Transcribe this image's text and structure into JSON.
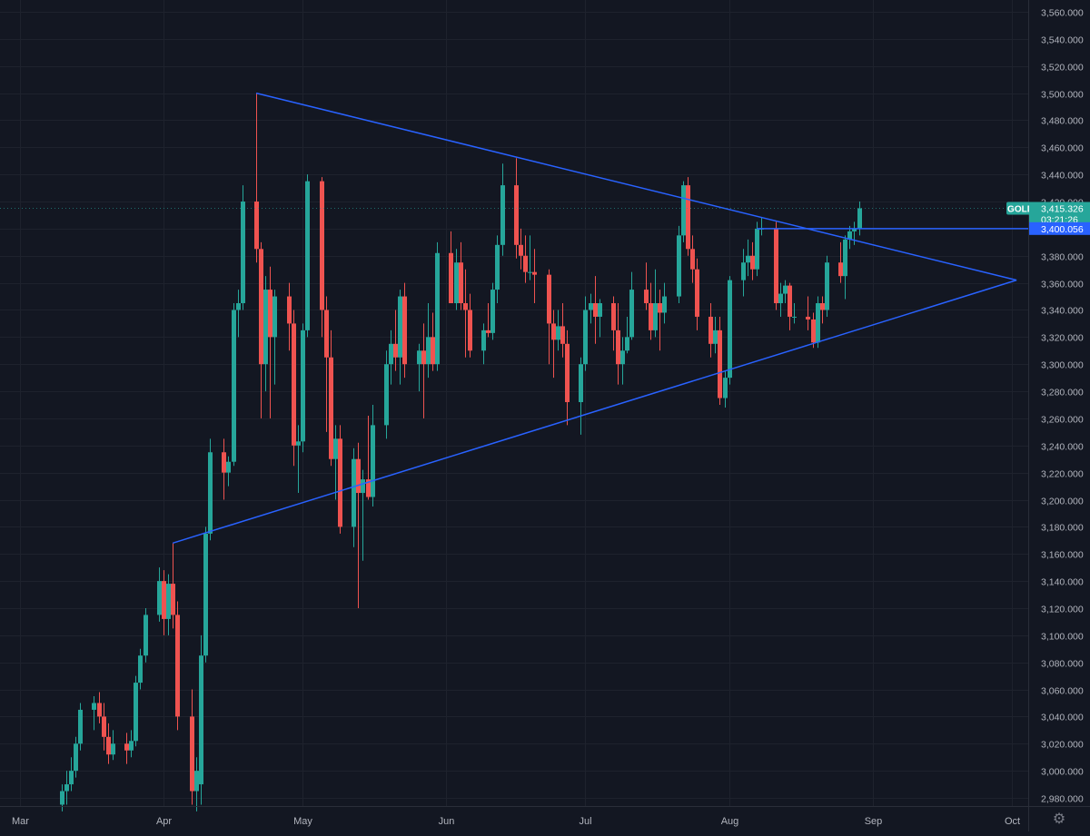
{
  "chart_data": {
    "type": "candlestick",
    "symbol": "GOLD",
    "last_price": "3,415.326",
    "countdown": "03:21:26",
    "level_price": "3,400.056",
    "ylim": [
      2970,
      3568
    ],
    "y_ticks": [
      2980,
      3000,
      3020,
      3040,
      3060,
      3080,
      3100,
      3120,
      3140,
      3160,
      3180,
      3200,
      3220,
      3240,
      3260,
      3280,
      3300,
      3320,
      3340,
      3360,
      3380,
      3400,
      3420,
      3440,
      3460,
      3480,
      3500,
      3520,
      3540,
      3560
    ],
    "y_tick_labels": [
      "2,980.000",
      "3,000.000",
      "3,020.000",
      "3,040.000",
      "3,060.000",
      "3,080.000",
      "3,100.000",
      "3,120.000",
      "3,140.000",
      "3,160.000",
      "3,180.000",
      "3,200.000",
      "3,220.000",
      "3,240.000",
      "3,260.000",
      "3,280.000",
      "3,300.000",
      "3,320.000",
      "3,340.000",
      "3,360.000",
      "3,380.000",
      "3,400.000",
      "3,420.000",
      "3,440.000",
      "3,460.000",
      "3,480.000",
      "3,500.000",
      "3,520.000",
      "3,540.000",
      "3,560.000"
    ],
    "x_ticks": [
      {
        "label": "Mar",
        "date": "2025-03-01"
      },
      {
        "label": "Apr",
        "date": "2025-04-01"
      },
      {
        "label": "May",
        "date": "2025-05-01"
      },
      {
        "label": "Jun",
        "date": "2025-06-01"
      },
      {
        "label": "Jul",
        "date": "2025-07-01"
      },
      {
        "label": "Aug",
        "date": "2025-08-01"
      },
      {
        "label": "Sep",
        "date": "2025-09-01"
      },
      {
        "label": "Oct",
        "date": "2025-10-01"
      }
    ],
    "candles": [
      {
        "date": "2025-03-10",
        "o": 2975,
        "h": 2990,
        "l": 2970,
        "c": 2985
      },
      {
        "date": "2025-03-11",
        "o": 2985,
        "h": 3000,
        "l": 2975,
        "c": 2990
      },
      {
        "date": "2025-03-12",
        "o": 2990,
        "h": 3010,
        "l": 2985,
        "c": 3000
      },
      {
        "date": "2025-03-13",
        "o": 3000,
        "h": 3025,
        "l": 2995,
        "c": 3020
      },
      {
        "date": "2025-03-14",
        "o": 3020,
        "h": 3050,
        "l": 3015,
        "c": 3045
      },
      {
        "date": "2025-03-17",
        "o": 3045,
        "h": 3055,
        "l": 3030,
        "c": 3050
      },
      {
        "date": "2025-03-18",
        "o": 3050,
        "h": 3058,
        "l": 3035,
        "c": 3040
      },
      {
        "date": "2025-03-19",
        "o": 3040,
        "h": 3050,
        "l": 3015,
        "c": 3025
      },
      {
        "date": "2025-03-20",
        "o": 3025,
        "h": 3035,
        "l": 3005,
        "c": 3012
      },
      {
        "date": "2025-03-21",
        "o": 3012,
        "h": 3030,
        "l": 3008,
        "c": 3020
      },
      {
        "date": "2025-03-24",
        "o": 3020,
        "h": 3028,
        "l": 3005,
        "c": 3015
      },
      {
        "date": "2025-03-25",
        "o": 3015,
        "h": 3030,
        "l": 3010,
        "c": 3022
      },
      {
        "date": "2025-03-26",
        "o": 3022,
        "h": 3070,
        "l": 3018,
        "c": 3065
      },
      {
        "date": "2025-03-27",
        "o": 3065,
        "h": 3090,
        "l": 3060,
        "c": 3085
      },
      {
        "date": "2025-03-28",
        "o": 3085,
        "h": 3120,
        "l": 3080,
        "c": 3115
      },
      {
        "date": "2025-03-31",
        "o": 3115,
        "h": 3150,
        "l": 3110,
        "c": 3140
      },
      {
        "date": "2025-04-01",
        "o": 3140,
        "h": 3148,
        "l": 3100,
        "c": 3112
      },
      {
        "date": "2025-04-02",
        "o": 3112,
        "h": 3145,
        "l": 3100,
        "c": 3138
      },
      {
        "date": "2025-04-03",
        "o": 3138,
        "h": 3168,
        "l": 3105,
        "c": 3115
      },
      {
        "date": "2025-04-04",
        "o": 3115,
        "h": 3125,
        "l": 3030,
        "c": 3040
      },
      {
        "date": "2025-04-07",
        "o": 3040,
        "h": 3060,
        "l": 2975,
        "c": 2985
      },
      {
        "date": "2025-04-08",
        "o": 2985,
        "h": 3010,
        "l": 2970,
        "c": 3000
      },
      {
        "date": "2025-04-09",
        "o": 2990,
        "h": 3100,
        "l": 2975,
        "c": 3085
      },
      {
        "date": "2025-04-10",
        "o": 3085,
        "h": 3180,
        "l": 3080,
        "c": 3175
      },
      {
        "date": "2025-04-11",
        "o": 3175,
        "h": 3245,
        "l": 3170,
        "c": 3235
      },
      {
        "date": "2025-04-14",
        "o": 3235,
        "h": 3245,
        "l": 3200,
        "c": 3220
      },
      {
        "date": "2025-04-15",
        "o": 3220,
        "h": 3232,
        "l": 3210,
        "c": 3228
      },
      {
        "date": "2025-04-16",
        "o": 3228,
        "h": 3345,
        "l": 3225,
        "c": 3340
      },
      {
        "date": "2025-04-17",
        "o": 3340,
        "h": 3355,
        "l": 3320,
        "c": 3345
      },
      {
        "date": "2025-04-18",
        "o": 3345,
        "h": 3432,
        "l": 3340,
        "c": 3420
      },
      {
        "date": "2025-04-21",
        "o": 3420,
        "h": 3500,
        "l": 3375,
        "c": 3385
      },
      {
        "date": "2025-04-22",
        "o": 3385,
        "h": 3390,
        "l": 3260,
        "c": 3300
      },
      {
        "date": "2025-04-23",
        "o": 3300,
        "h": 3365,
        "l": 3280,
        "c": 3355
      },
      {
        "date": "2025-04-24",
        "o": 3355,
        "h": 3372,
        "l": 3260,
        "c": 3320
      },
      {
        "date": "2025-04-25",
        "o": 3320,
        "h": 3355,
        "l": 3285,
        "c": 3350
      },
      {
        "date": "2025-04-28",
        "o": 3350,
        "h": 3360,
        "l": 3310,
        "c": 3330
      },
      {
        "date": "2025-04-29",
        "o": 3330,
        "h": 3340,
        "l": 3225,
        "c": 3240
      },
      {
        "date": "2025-04-30",
        "o": 3240,
        "h": 3255,
        "l": 3205,
        "c": 3243
      },
      {
        "date": "2025-05-01",
        "o": 3243,
        "h": 3330,
        "l": 3235,
        "c": 3325
      },
      {
        "date": "2025-05-02",
        "o": 3325,
        "h": 3440,
        "l": 3320,
        "c": 3435
      },
      {
        "date": "2025-05-05",
        "o": 3435,
        "h": 3438,
        "l": 3320,
        "c": 3340
      },
      {
        "date": "2025-05-06",
        "o": 3340,
        "h": 3350,
        "l": 3250,
        "c": 3305
      },
      {
        "date": "2025-05-07",
        "o": 3305,
        "h": 3325,
        "l": 3225,
        "c": 3230
      },
      {
        "date": "2025-05-08",
        "o": 3230,
        "h": 3255,
        "l": 3200,
        "c": 3245
      },
      {
        "date": "2025-05-09",
        "o": 3245,
        "h": 3255,
        "l": 3175,
        "c": 3180
      },
      {
        "date": "2025-05-12",
        "o": 3180,
        "h": 3238,
        "l": 3165,
        "c": 3230
      },
      {
        "date": "2025-05-13",
        "o": 3230,
        "h": 3242,
        "l": 3120,
        "c": 3205
      },
      {
        "date": "2025-05-14",
        "o": 3205,
        "h": 3222,
        "l": 3155,
        "c": 3215
      },
      {
        "date": "2025-05-15",
        "o": 3215,
        "h": 3262,
        "l": 3200,
        "c": 3202
      },
      {
        "date": "2025-05-16",
        "o": 3202,
        "h": 3270,
        "l": 3195,
        "c": 3255
      },
      {
        "date": "2025-05-19",
        "o": 3255,
        "h": 3310,
        "l": 3245,
        "c": 3300
      },
      {
        "date": "2025-05-20",
        "o": 3300,
        "h": 3325,
        "l": 3285,
        "c": 3315
      },
      {
        "date": "2025-05-21",
        "o": 3315,
        "h": 3340,
        "l": 3295,
        "c": 3305
      },
      {
        "date": "2025-05-22",
        "o": 3305,
        "h": 3355,
        "l": 3285,
        "c": 3350
      },
      {
        "date": "2025-05-23",
        "o": 3350,
        "h": 3360,
        "l": 3290,
        "c": 3300
      },
      {
        "date": "2025-05-26",
        "o": 3300,
        "h": 3315,
        "l": 3280,
        "c": 3310
      },
      {
        "date": "2025-05-27",
        "o": 3310,
        "h": 3330,
        "l": 3260,
        "c": 3300
      },
      {
        "date": "2025-05-28",
        "o": 3300,
        "h": 3345,
        "l": 3290,
        "c": 3320
      },
      {
        "date": "2025-05-29",
        "o": 3320,
        "h": 3338,
        "l": 3295,
        "c": 3300
      },
      {
        "date": "2025-05-30",
        "o": 3300,
        "h": 3390,
        "l": 3295,
        "c": 3382
      },
      {
        "date": "2025-06-02",
        "o": 3382,
        "h": 3398,
        "l": 3350,
        "c": 3345
      },
      {
        "date": "2025-06-03",
        "o": 3345,
        "h": 3385,
        "l": 3340,
        "c": 3375
      },
      {
        "date": "2025-06-04",
        "o": 3375,
        "h": 3390,
        "l": 3340,
        "c": 3345
      },
      {
        "date": "2025-06-05",
        "o": 3345,
        "h": 3370,
        "l": 3305,
        "c": 3340
      },
      {
        "date": "2025-06-06",
        "o": 3340,
        "h": 3352,
        "l": 3305,
        "c": 3310
      },
      {
        "date": "2025-06-09",
        "o": 3310,
        "h": 3330,
        "l": 3300,
        "c": 3325
      },
      {
        "date": "2025-06-10",
        "o": 3325,
        "h": 3345,
        "l": 3320,
        "c": 3323
      },
      {
        "date": "2025-06-11",
        "o": 3323,
        "h": 3360,
        "l": 3318,
        "c": 3355
      },
      {
        "date": "2025-06-12",
        "o": 3355,
        "h": 3395,
        "l": 3345,
        "c": 3388
      },
      {
        "date": "2025-06-13",
        "o": 3388,
        "h": 3448,
        "l": 3380,
        "c": 3432
      },
      {
        "date": "2025-06-16",
        "o": 3432,
        "h": 3452,
        "l": 3378,
        "c": 3388
      },
      {
        "date": "2025-06-17",
        "o": 3388,
        "h": 3400,
        "l": 3370,
        "c": 3380
      },
      {
        "date": "2025-06-18",
        "o": 3380,
        "h": 3395,
        "l": 3360,
        "c": 3368
      },
      {
        "date": "2025-06-19",
        "o": 3368,
        "h": 3395,
        "l": 3362,
        "c": 3368
      },
      {
        "date": "2025-06-20",
        "o": 3368,
        "h": 3385,
        "l": 3345,
        "c": 3366
      },
      {
        "date": "2025-06-23",
        "o": 3366,
        "h": 3370,
        "l": 3300,
        "c": 3330
      },
      {
        "date": "2025-06-24",
        "o": 3330,
        "h": 3340,
        "l": 3290,
        "c": 3318
      },
      {
        "date": "2025-06-25",
        "o": 3318,
        "h": 3340,
        "l": 3310,
        "c": 3328
      },
      {
        "date": "2025-06-26",
        "o": 3328,
        "h": 3345,
        "l": 3305,
        "c": 3315
      },
      {
        "date": "2025-06-27",
        "o": 3315,
        "h": 3325,
        "l": 3255,
        "c": 3272
      },
      {
        "date": "2025-06-30",
        "o": 3272,
        "h": 3305,
        "l": 3248,
        "c": 3300
      },
      {
        "date": "2025-07-01",
        "o": 3300,
        "h": 3350,
        "l": 3295,
        "c": 3340
      },
      {
        "date": "2025-07-02",
        "o": 3340,
        "h": 3352,
        "l": 3330,
        "c": 3345
      },
      {
        "date": "2025-07-03",
        "o": 3345,
        "h": 3365,
        "l": 3315,
        "c": 3335
      },
      {
        "date": "2025-07-04",
        "o": 3335,
        "h": 3348,
        "l": 3320,
        "c": 3345
      },
      {
        "date": "2025-07-07",
        "o": 3345,
        "h": 3350,
        "l": 3310,
        "c": 3325
      },
      {
        "date": "2025-07-08",
        "o": 3325,
        "h": 3345,
        "l": 3285,
        "c": 3300
      },
      {
        "date": "2025-07-09",
        "o": 3300,
        "h": 3320,
        "l": 3285,
        "c": 3310
      },
      {
        "date": "2025-07-10",
        "o": 3310,
        "h": 3335,
        "l": 3308,
        "c": 3320
      },
      {
        "date": "2025-07-11",
        "o": 3320,
        "h": 3368,
        "l": 3318,
        "c": 3355
      },
      {
        "date": "2025-07-14",
        "o": 3355,
        "h": 3375,
        "l": 3340,
        "c": 3345
      },
      {
        "date": "2025-07-15",
        "o": 3345,
        "h": 3360,
        "l": 3318,
        "c": 3325
      },
      {
        "date": "2025-07-16",
        "o": 3325,
        "h": 3370,
        "l": 3320,
        "c": 3345
      },
      {
        "date": "2025-07-17",
        "o": 3345,
        "h": 3355,
        "l": 3310,
        "c": 3338
      },
      {
        "date": "2025-07-18",
        "o": 3338,
        "h": 3360,
        "l": 3330,
        "c": 3350
      },
      {
        "date": "2025-07-21",
        "o": 3350,
        "h": 3402,
        "l": 3345,
        "c": 3395
      },
      {
        "date": "2025-07-22",
        "o": 3395,
        "h": 3435,
        "l": 3390,
        "c": 3432
      },
      {
        "date": "2025-07-23",
        "o": 3432,
        "h": 3438,
        "l": 3380,
        "c": 3385
      },
      {
        "date": "2025-07-24",
        "o": 3385,
        "h": 3395,
        "l": 3360,
        "c": 3370
      },
      {
        "date": "2025-07-25",
        "o": 3370,
        "h": 3378,
        "l": 3325,
        "c": 3335
      },
      {
        "date": "2025-07-28",
        "o": 3335,
        "h": 3345,
        "l": 3305,
        "c": 3315
      },
      {
        "date": "2025-07-29",
        "o": 3315,
        "h": 3335,
        "l": 3308,
        "c": 3325
      },
      {
        "date": "2025-07-30",
        "o": 3325,
        "h": 3335,
        "l": 3270,
        "c": 3275
      },
      {
        "date": "2025-07-31",
        "o": 3275,
        "h": 3295,
        "l": 3268,
        "c": 3290
      },
      {
        "date": "2025-08-01",
        "o": 3290,
        "h": 3365,
        "l": 3285,
        "c": 3362
      },
      {
        "date": "2025-08-04",
        "o": 3362,
        "h": 3385,
        "l": 3350,
        "c": 3375
      },
      {
        "date": "2025-08-05",
        "o": 3375,
        "h": 3392,
        "l": 3365,
        "c": 3380
      },
      {
        "date": "2025-08-06",
        "o": 3380,
        "h": 3390,
        "l": 3362,
        "c": 3370
      },
      {
        "date": "2025-08-07",
        "o": 3370,
        "h": 3405,
        "l": 3365,
        "c": 3400
      },
      {
        "date": "2025-08-08",
        "o": 3400,
        "h": 3408,
        "l": 3395,
        "c": 3400
      },
      {
        "date": "2025-08-11",
        "o": 3400,
        "h": 3405,
        "l": 3340,
        "c": 3345
      },
      {
        "date": "2025-08-12",
        "o": 3345,
        "h": 3360,
        "l": 3335,
        "c": 3352
      },
      {
        "date": "2025-08-13",
        "o": 3352,
        "h": 3362,
        "l": 3345,
        "c": 3358
      },
      {
        "date": "2025-08-14",
        "o": 3358,
        "h": 3360,
        "l": 3325,
        "c": 3335
      },
      {
        "date": "2025-08-15",
        "o": 3335,
        "h": 3345,
        "l": 3330,
        "c": 3335
      },
      {
        "date": "2025-08-18",
        "o": 3335,
        "h": 3350,
        "l": 3325,
        "c": 3333
      },
      {
        "date": "2025-08-19",
        "o": 3333,
        "h": 3338,
        "l": 3312,
        "c": 3316
      },
      {
        "date": "2025-08-20",
        "o": 3316,
        "h": 3350,
        "l": 3312,
        "c": 3345
      },
      {
        "date": "2025-08-21",
        "o": 3345,
        "h": 3350,
        "l": 3330,
        "c": 3340
      },
      {
        "date": "2025-08-22",
        "o": 3340,
        "h": 3380,
        "l": 3335,
        "c": 3375
      },
      {
        "date": "2025-08-25",
        "o": 3375,
        "h": 3390,
        "l": 3360,
        "c": 3365
      },
      {
        "date": "2025-08-26",
        "o": 3365,
        "h": 3395,
        "l": 3348,
        "c": 3392
      },
      {
        "date": "2025-08-27",
        "o": 3392,
        "h": 3402,
        "l": 3385,
        "c": 3398
      },
      {
        "date": "2025-08-28",
        "o": 3398,
        "h": 3405,
        "l": 3388,
        "c": 3400
      },
      {
        "date": "2025-08-29",
        "o": 3400,
        "h": 3420,
        "l": 3395,
        "c": 3415
      }
    ],
    "drawings": [
      {
        "name": "upper-trendline",
        "from": {
          "date": "2025-04-21",
          "price": 3500
        },
        "to": {
          "date": "2025-10-02",
          "price": 3362
        }
      },
      {
        "name": "lower-trendline",
        "from": {
          "date": "2025-04-03",
          "price": 3168
        },
        "to": {
          "date": "2025-10-02",
          "price": 3362
        }
      },
      {
        "name": "horizontal-level",
        "from": {
          "date": "2025-08-07",
          "price": 3400.056
        },
        "to": {
          "date": "2025-10-07",
          "price": 3400.056
        }
      }
    ],
    "colors": {
      "background": "#131722",
      "up": "#26a69a",
      "down": "#ef5350",
      "grid": "#1e222d",
      "text": "#b2b5be",
      "drawing": "#2962ff",
      "price_label_last": "#26a69a",
      "price_label_level": "#2962ff"
    }
  }
}
